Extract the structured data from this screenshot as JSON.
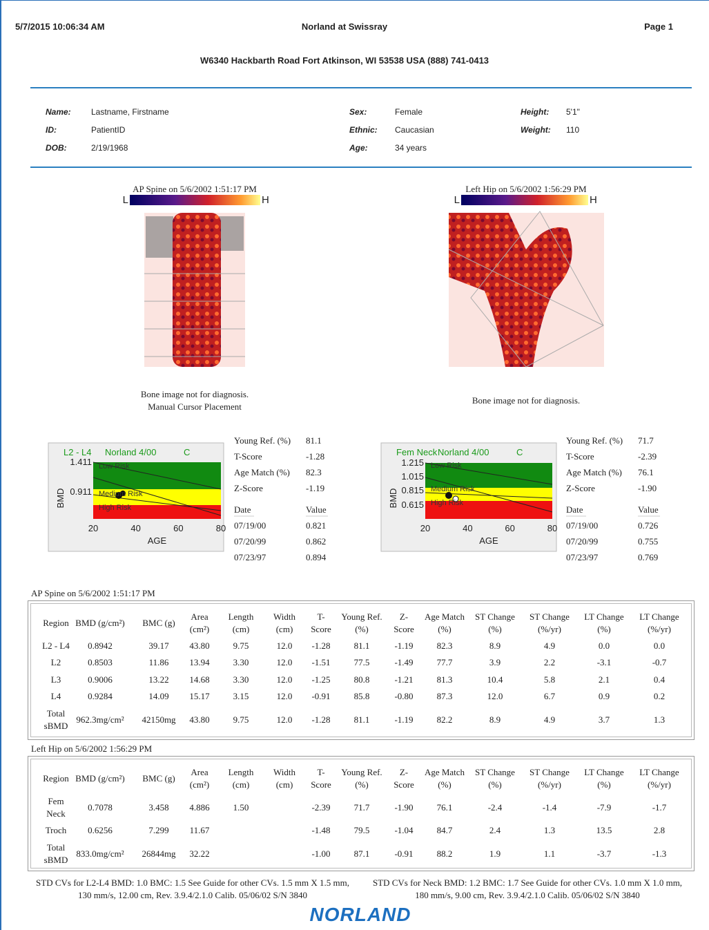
{
  "header": {
    "datetime": "5/7/2015 10:06:34 AM",
    "clinic": "Norland at Swissray",
    "page": "Page 1",
    "address": "W6340 Hackbarth Road Fort Atkinson, WI 53538 USA (888) 741-0413"
  },
  "patient": [
    [
      {
        "label": "Name:",
        "value": "Lastname, Firstname"
      },
      {
        "label": "ID:",
        "value": "PatientID"
      },
      {
        "label": "DOB:",
        "value": "2/19/1968"
      }
    ],
    [
      {
        "label": "Sex:",
        "value": "Female"
      },
      {
        "label": "Ethnic:",
        "value": "Caucasian"
      },
      {
        "label": "Age:",
        "value": "34 years"
      }
    ],
    [
      {
        "label": "Height:",
        "value": "5'1\""
      },
      {
        "label": "Weight:",
        "value": "110"
      }
    ]
  ],
  "scans": [
    {
      "title": "AP Spine on 5/6/2002 1:51:17 PM",
      "scale_low": "L",
      "scale_high": "H",
      "notes": [
        "Bone image not for diagnosis.",
        "Manual Cursor Placement"
      ],
      "chart": {
        "region": "L2 - L4",
        "reference": "Norland 4/00",
        "code": "C",
        "y_label": "BMD",
        "x_label": "AGE",
        "yticks": [
          "1.411",
          "0.911"
        ],
        "xticks": [
          "20",
          "40",
          "60",
          "80"
        ],
        "zones": [
          "Low Risk",
          "Medium Risk",
          "High Risk"
        ]
      },
      "summary": [
        [
          "Young Ref. (%)",
          "81.1"
        ],
        [
          "T-Score",
          "-1.28"
        ],
        [
          "Age Match (%)",
          "82.3"
        ],
        [
          "Z-Score",
          "-1.19"
        ]
      ],
      "history_header": [
        "Date",
        "Value"
      ],
      "history": [
        [
          "07/19/00",
          "0.821"
        ],
        [
          "07/20/99",
          "0.862"
        ],
        [
          "07/23/97",
          "0.894"
        ]
      ]
    },
    {
      "title": "Left Hip on 5/6/2002 1:56:29 PM",
      "scale_low": "L",
      "scale_high": "H",
      "notes": [
        "Bone image not for diagnosis."
      ],
      "chart": {
        "region": "Fem Neck",
        "reference": "Norland 4/00",
        "code": "C",
        "y_label": "BMD",
        "x_label": "AGE",
        "yticks": [
          "1.215",
          "1.015",
          "0.815",
          "0.615"
        ],
        "xticks": [
          "20",
          "40",
          "60",
          "80"
        ],
        "zones": [
          "Low Risk",
          "Medium Risk",
          "High Risk"
        ]
      },
      "summary": [
        [
          "Young Ref. (%)",
          "71.7"
        ],
        [
          "T-Score",
          "-2.39"
        ],
        [
          "Age Match (%)",
          "76.1"
        ],
        [
          "Z-Score",
          "-1.90"
        ]
      ],
      "history_header": [
        "Date",
        "Value"
      ],
      "history": [
        [
          "07/19/00",
          "0.726"
        ],
        [
          "07/20/99",
          "0.755"
        ],
        [
          "07/23/97",
          "0.769"
        ]
      ]
    }
  ],
  "tables": [
    {
      "title": "AP Spine on 5/6/2002 1:51:17 PM",
      "header": [
        "Region",
        "BMD (g/cm²)",
        "BMC (g)",
        "Area\n(cm²)",
        "Length\n(cm)",
        "Width\n(cm)",
        "T-\nScore",
        "Young Ref.\n(%)",
        "Z-\nScore",
        "Age Match\n(%)",
        "ST Change\n(%)",
        "ST Change\n(%/yr)",
        "LT Change\n(%)",
        "LT Change\n(%/yr)"
      ],
      "rows": [
        [
          "L2 - L4",
          "0.8942",
          "39.17",
          "43.80",
          "9.75",
          "12.0",
          "-1.28",
          "81.1",
          "-1.19",
          "82.3",
          "8.9",
          "4.9",
          "0.0",
          "0.0"
        ],
        [
          "L2",
          "0.8503",
          "11.86",
          "13.94",
          "3.30",
          "12.0",
          "-1.51",
          "77.5",
          "-1.49",
          "77.7",
          "3.9",
          "2.2",
          "-3.1",
          "-0.7"
        ],
        [
          "L3",
          "0.9006",
          "13.22",
          "14.68",
          "3.30",
          "12.0",
          "-1.25",
          "80.8",
          "-1.21",
          "81.3",
          "10.4",
          "5.8",
          "2.1",
          "0.4"
        ],
        [
          "L4",
          "0.9284",
          "14.09",
          "15.17",
          "3.15",
          "12.0",
          "-0.91",
          "85.8",
          "-0.80",
          "87.3",
          "12.0",
          "6.7",
          "0.9",
          "0.2"
        ],
        [
          "Total\nsBMD",
          "962.3mg/cm²",
          "42150mg",
          "43.80",
          "9.75",
          "12.0",
          "-1.28",
          "81.1",
          "-1.19",
          "82.2",
          "8.9",
          "4.9",
          "3.7",
          "1.3"
        ]
      ]
    },
    {
      "title": "Left Hip on 5/6/2002 1:56:29 PM",
      "header": [
        "Region",
        "BMD (g/cm²)",
        "BMC (g)",
        "Area\n(cm²)",
        "Length\n(cm)",
        "Width\n(cm)",
        "T-\nScore",
        "Young Ref.\n(%)",
        "Z-\nScore",
        "Age Match\n(%)",
        "ST Change\n(%)",
        "ST Change\n(%/yr)",
        "LT Change\n(%)",
        "LT Change\n(%/yr)"
      ],
      "rows": [
        [
          "Fem\nNeck",
          "0.7078",
          "3.458",
          "4.886",
          "1.50",
          null,
          "-2.39",
          "71.7",
          "-1.90",
          "76.1",
          "-2.4",
          "-1.4",
          "-7.9",
          "-1.7"
        ],
        [
          "Troch",
          "0.6256",
          "7.299",
          "11.67",
          null,
          null,
          "-1.48",
          "79.5",
          "-1.04",
          "84.7",
          "2.4",
          "1.3",
          "13.5",
          "2.8"
        ],
        [
          "Total\nsBMD",
          "833.0mg/cm²",
          "26844mg",
          "32.22",
          null,
          null,
          "-1.00",
          "87.1",
          "-0.91",
          "88.2",
          "1.9",
          "1.1",
          "-3.7",
          "-1.3"
        ]
      ]
    }
  ],
  "footer": {
    "notes": [
      "STD CVs for L2-L4 BMD: 1.0 BMC: 1.5 See Guide for other CVs. 1.5 mm X 1.5 mm, 130 mm/s, 12.00 cm, Rev. 3.9.4/2.1.0 Calib. 05/06/02 S/N 3840",
      "STD CVs for Neck BMD: 1.2 BMC: 1.7 See Guide for other CVs. 1.0 mm X 1.0 mm, 180 mm/s, 9.00 cm, Rev. 3.9.4/2.1.0 Calib. 05/06/02 S/N 3840"
    ],
    "logo": "NORLAND"
  }
}
